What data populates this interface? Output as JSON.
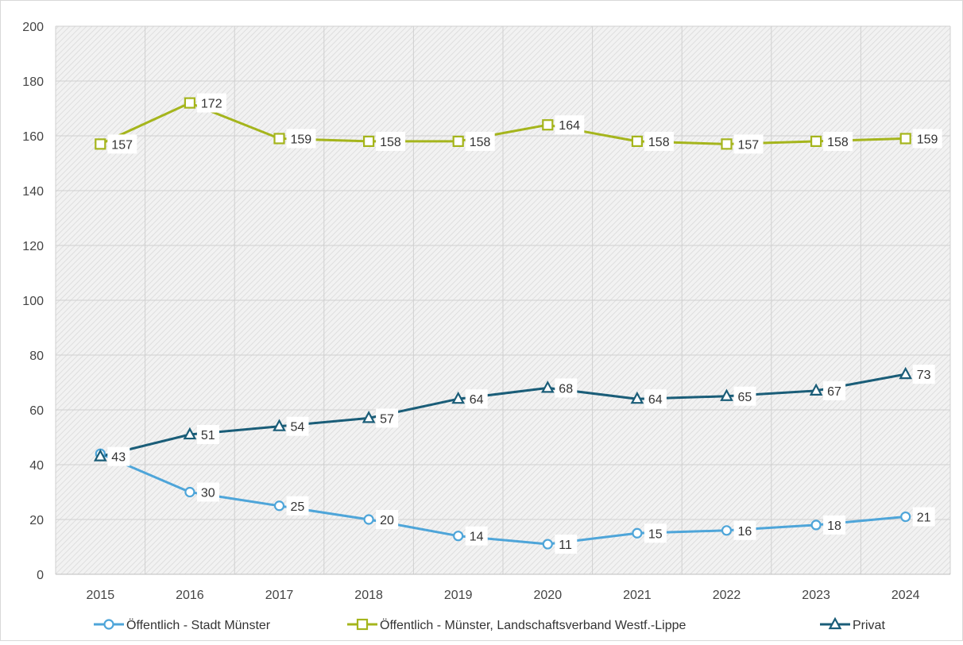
{
  "chart_data": {
    "type": "line",
    "title": "",
    "xlabel": "",
    "ylabel": "",
    "x": [
      "2015",
      "2016",
      "2017",
      "2018",
      "2019",
      "2020",
      "2021",
      "2022",
      "2023",
      "2024"
    ],
    "ylim": [
      0,
      200
    ],
    "yticks": [
      "0",
      "20",
      "40",
      "60",
      "80",
      "100",
      "120",
      "140",
      "160",
      "180",
      "200"
    ],
    "grid": true,
    "legend_position": "bottom",
    "series": [
      {
        "name": "Öffentlich - Stadt Münster",
        "marker": "circle",
        "color": "#4ea5d9",
        "values": [
          44,
          30,
          25,
          20,
          14,
          11,
          15,
          16,
          18,
          21
        ],
        "labels": [
          "",
          "30",
          "25",
          "20",
          "14",
          "11",
          "15",
          "16",
          "18",
          "21"
        ]
      },
      {
        "name": "Öffentlich - Münster, Landschaftsverband Westf.-Lippe",
        "marker": "square",
        "color": "#a5b51c",
        "values": [
          157,
          172,
          159,
          158,
          158,
          164,
          158,
          157,
          158,
          159
        ],
        "labels": [
          "157",
          "172",
          "159",
          "158",
          "158",
          "164",
          "158",
          "157",
          "158",
          "159"
        ]
      },
      {
        "name": "Privat",
        "marker": "triangle",
        "color": "#1a5d78",
        "values": [
          43,
          51,
          54,
          57,
          64,
          68,
          64,
          65,
          67,
          73
        ],
        "labels": [
          "43",
          "51",
          "54",
          "57",
          "64",
          "68",
          "64",
          "65",
          "67",
          "73"
        ]
      }
    ]
  }
}
